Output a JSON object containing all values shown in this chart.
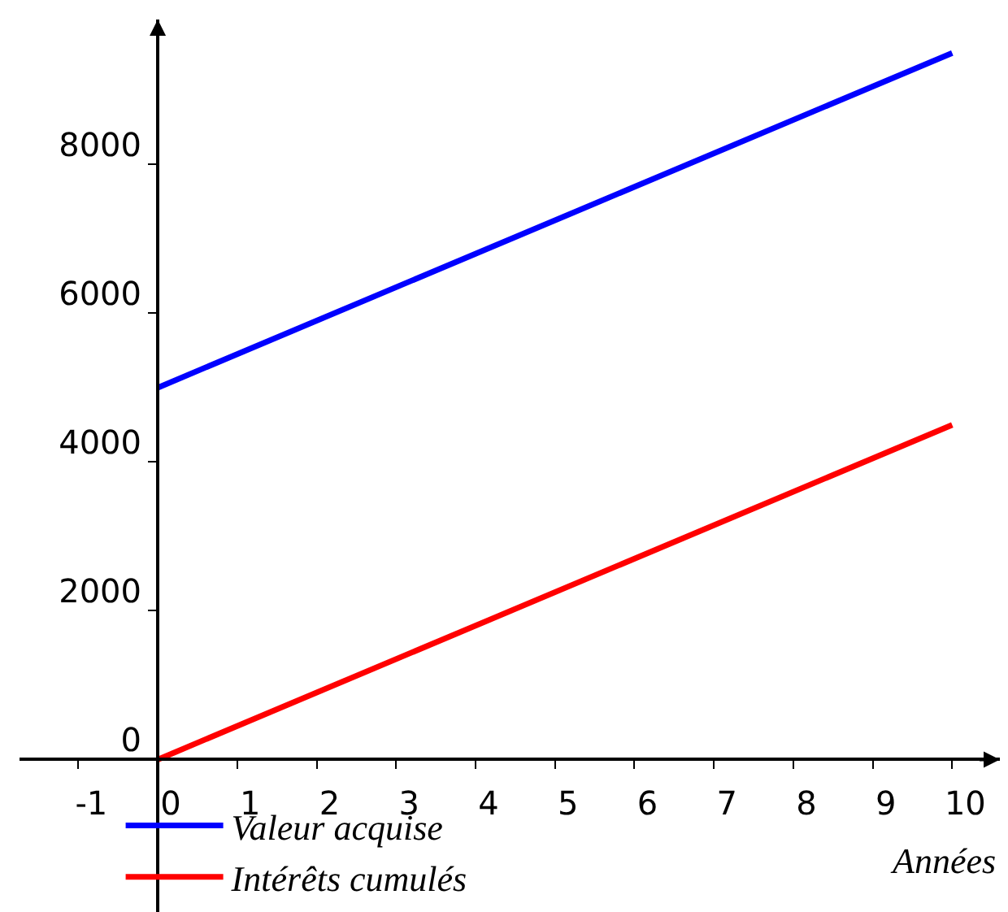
{
  "chart_data": {
    "type": "line",
    "xlabel": "Années",
    "x": [
      0,
      10
    ],
    "series": [
      {
        "name": "Valeur acquise",
        "color": "#0000ff",
        "values": [
          5000,
          9500
        ]
      },
      {
        "name": "Intérêts cumulés",
        "color": "#ff0000",
        "values": [
          0,
          4500
        ]
      }
    ],
    "xlim": [
      -1.74,
      10.6
    ],
    "ylim": [
      -2050,
      9950
    ],
    "xticks": [
      -1,
      0,
      1,
      2,
      3,
      4,
      5,
      6,
      7,
      8,
      9,
      10
    ],
    "yticks": [
      0,
      2000,
      4000,
      6000,
      8000
    ],
    "grid": false,
    "legend": "bottom left",
    "marker": "none",
    "line_style": "solid"
  }
}
